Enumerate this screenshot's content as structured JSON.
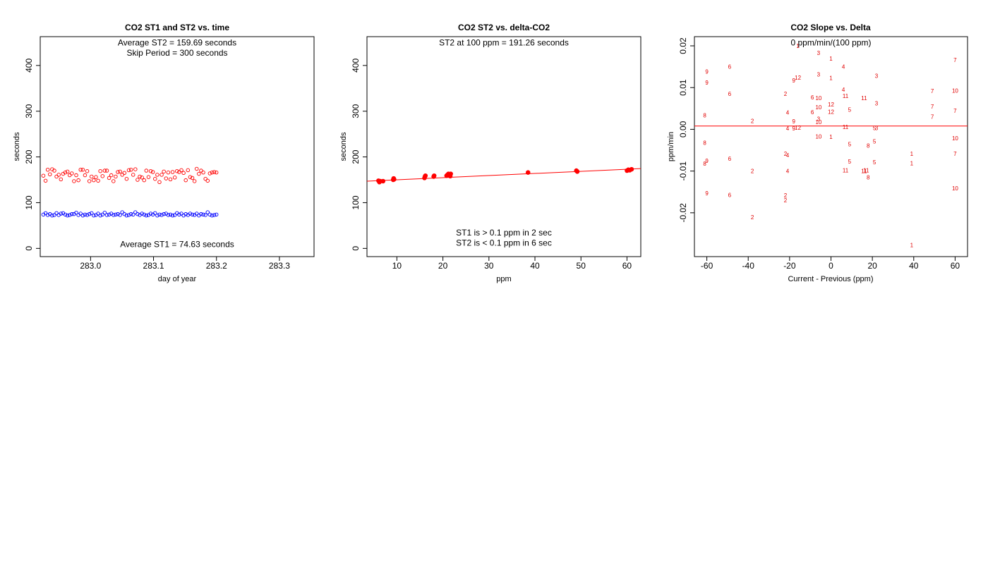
{
  "chart_data": [
    {
      "type": "scatter",
      "title": "CO2 ST1 and ST2 vs. time",
      "xlabel": "day of year",
      "ylabel": "seconds",
      "xlim": [
        282.92,
        283.355
      ],
      "ylim": [
        -18,
        463
      ],
      "xticks": [
        283.0,
        283.1,
        283.2,
        283.3
      ],
      "xtick_labels": [
        "283.0",
        "283.1",
        "283.2",
        "283.3"
      ],
      "yticks": [
        0,
        100,
        200,
        300,
        400
      ],
      "ytick_labels": [
        "0",
        "100",
        "200",
        "300",
        "400"
      ],
      "annotations": [
        {
          "text": "Average ST2 =  159.69  seconds",
          "x": 283.1375,
          "y": 444
        },
        {
          "text": "Skip Period =  300  seconds",
          "x": 283.1375,
          "y": 421
        },
        {
          "text": "Average ST1 =  74.63  seconds",
          "x": 283.1375,
          "y": 3
        }
      ],
      "series": [
        {
          "color": "#ff0000",
          "marker": "open-circle",
          "x_start": 282.925,
          "x_step": 0.00348,
          "values": [
            159,
            148,
            172,
            162,
            173,
            170,
            157,
            161,
            151,
            163,
            166,
            168,
            160,
            164,
            147,
            160,
            149,
            172,
            172,
            160,
            169,
            147,
            157,
            149,
            156,
            148,
            169,
            158,
            170,
            170,
            154,
            160,
            147,
            157,
            167,
            168,
            161,
            165,
            152,
            171,
            172,
            161,
            173,
            150,
            157,
            155,
            149,
            170,
            156,
            169,
            167,
            152,
            161,
            145,
            161,
            168,
            153,
            166,
            151,
            167,
            155,
            169,
            167,
            171,
            165,
            149,
            171,
            156,
            154,
            147,
            174,
            163,
            170,
            166,
            152,
            148,
            164,
            166,
            167,
            166
          ]
        },
        {
          "color": "#0000ff",
          "marker": "open-circle",
          "x_start": 282.925,
          "x_step": 0.00348,
          "values": [
            74,
            77,
            73,
            75,
            72,
            73,
            77,
            73,
            76,
            77,
            74,
            72,
            73,
            75,
            75,
            78,
            73,
            76,
            72,
            74,
            73,
            75,
            77,
            72,
            73,
            76,
            72,
            74,
            78,
            73,
            74,
            76,
            73,
            74,
            75,
            73,
            79,
            75,
            72,
            73,
            75,
            74,
            79,
            75,
            73,
            76,
            74,
            72,
            73,
            76,
            74,
            77,
            72,
            74,
            73,
            75,
            76,
            73,
            74,
            72,
            73,
            77,
            74,
            76,
            72,
            75,
            73,
            76,
            74,
            73,
            76,
            72,
            75,
            74,
            73,
            79,
            74,
            72,
            73,
            74
          ]
        }
      ]
    },
    {
      "type": "scatter",
      "title": "CO2 ST2 vs. delta-CO2",
      "xlabel": "ppm",
      "ylabel": "seconds",
      "xlim": [
        3.5,
        63
      ],
      "ylim": [
        -18,
        463
      ],
      "xticks": [
        10,
        20,
        30,
        40,
        50,
        60
      ],
      "xtick_labels": [
        "10",
        "20",
        "30",
        "40",
        "50",
        "60"
      ],
      "yticks": [
        0,
        100,
        200,
        300,
        400
      ],
      "ytick_labels": [
        "0",
        "100",
        "200",
        "300",
        "400"
      ],
      "annotations": [
        {
          "text": "ST2 at 100 ppm =  191.26  seconds",
          "x": 33.25,
          "y": 444
        },
        {
          "text": "ST1 is > 0.1 ppm in 2 sec",
          "x": 33.25,
          "y": 28
        },
        {
          "text": "ST2 is < 0.1 ppm in 6 sec",
          "x": 33.25,
          "y": 6
        }
      ],
      "fit_line": {
        "color": "#ff0000",
        "x": [
          3.5,
          63
        ],
        "y": [
          147,
          174.5
        ]
      },
      "series": [
        {
          "color": "#ff0000",
          "marker": "filled-circle",
          "x": [
            6.0,
            6.2,
            6.4,
            7.0,
            9.2,
            9.3,
            9.4,
            16.0,
            16.1,
            16.2,
            18.0,
            18.1,
            20.8,
            21.0,
            21.2,
            21.5,
            21.6,
            21.7,
            38.5,
            49.0,
            49.2,
            60.0,
            60.3,
            60.6,
            61.0
          ],
          "y": [
            148,
            145,
            147,
            147,
            150,
            153,
            151,
            154,
            157,
            159,
            157,
            159,
            159,
            161,
            163,
            160,
            158,
            163,
            166,
            170,
            168,
            170,
            172,
            171,
            173
          ]
        }
      ]
    },
    {
      "type": "scatter",
      "title": "CO2 Slope vs. Delta",
      "xlabel": "Current - Previous (ppm)",
      "ylabel": "ppm/min",
      "xlim": [
        -66,
        66
      ],
      "ylim": [
        -0.0305,
        0.0222
      ],
      "xticks": [
        -60,
        -40,
        -20,
        0,
        20,
        40,
        60
      ],
      "xtick_labels": [
        "-60",
        "-40",
        "-20",
        "0",
        "20",
        "40",
        "60"
      ],
      "yticks": [
        -0.02,
        -0.01,
        0.0,
        0.01,
        0.02
      ],
      "ytick_labels": [
        "-0.02",
        "-0.01",
        "0.00",
        "0.01",
        "0.02"
      ],
      "annotations": [
        {
          "text": "0  ppm/min/(100 ppm)",
          "x": 0,
          "y": 0.0201
        }
      ],
      "fit_line": {
        "color": "#ff0000",
        "x": [
          -66,
          66
        ],
        "y": [
          0.0008,
          0.0008
        ]
      },
      "point_labels": {
        "color": "#ff0000",
        "labels": [
          "9",
          "9",
          "9",
          "9",
          "8",
          "8",
          "8",
          "6",
          "6",
          "6",
          "6",
          "2",
          "2",
          "2",
          "2",
          "2",
          "2",
          "2",
          "4",
          "4",
          "4",
          "4",
          "12",
          "12",
          "9",
          "9",
          "9",
          "1",
          "3",
          "3",
          "3",
          "6",
          "6",
          "10",
          "10",
          "10",
          "10",
          "12",
          "12",
          "1",
          "1",
          "1",
          "4",
          "4",
          "11",
          "11",
          "11",
          "11",
          "11",
          "11",
          "5",
          "5",
          "5",
          "5",
          "5",
          "5",
          "8",
          "8",
          "3",
          "3",
          "3",
          "1",
          "1",
          "7",
          "7",
          "7",
          "7",
          "7",
          "7",
          "10",
          "10",
          "10",
          "1"
        ],
        "x": [
          -60,
          -60,
          -60,
          -60,
          -61,
          -61,
          -61,
          -49,
          -49,
          -49,
          -49,
          -38,
          -38,
          -38,
          -22,
          -22,
          -22,
          -22,
          -21,
          -21,
          -21,
          -21,
          -16,
          -16,
          -18,
          -18,
          -18,
          -16,
          -6,
          -6,
          -6,
          -9,
          -9,
          -6,
          -6,
          -6,
          -6,
          0,
          0,
          0,
          0,
          0,
          6,
          6,
          7,
          7,
          7,
          16,
          16,
          17,
          9,
          9,
          9,
          21,
          21,
          21,
          18,
          18,
          22,
          22,
          22,
          39,
          39,
          49,
          49,
          49,
          60,
          60,
          60,
          60,
          60,
          60,
          39
        ],
        "y": [
          0.0138,
          0.0112,
          -0.0075,
          -0.0153,
          0.0034,
          -0.0032,
          -0.0082,
          0.015,
          0.0085,
          -0.007,
          -0.0157,
          0.002,
          -0.01,
          -0.021,
          0.0085,
          -0.0058,
          -0.0158,
          -0.017,
          0.004,
          0.0002,
          -0.0062,
          -0.01,
          0.0124,
          0.0004,
          0.0117,
          0.0019,
          0.0002,
          0.02,
          0.0183,
          0.0132,
          0.0025,
          0.0077,
          0.0041,
          0.0075,
          0.0053,
          0.0018,
          -0.0017,
          0.006,
          0.0042,
          0.017,
          0.0123,
          -0.0018,
          0.015,
          0.0095,
          0.008,
          -0.0098,
          0.0006,
          0.0075,
          -0.01,
          -0.0098,
          0.0047,
          -0.0036,
          -0.0077,
          -0.0029,
          -0.0079,
          0.0003,
          -0.0115,
          -0.0039,
          0.0128,
          0.0062,
          0.0003,
          -0.0081,
          -0.0277,
          0.0092,
          0.0055,
          0.003,
          0.0166,
          0.0045,
          -0.0058,
          -0.0141,
          0.0093,
          -0.0021,
          -0.0058
        ]
      }
    }
  ]
}
